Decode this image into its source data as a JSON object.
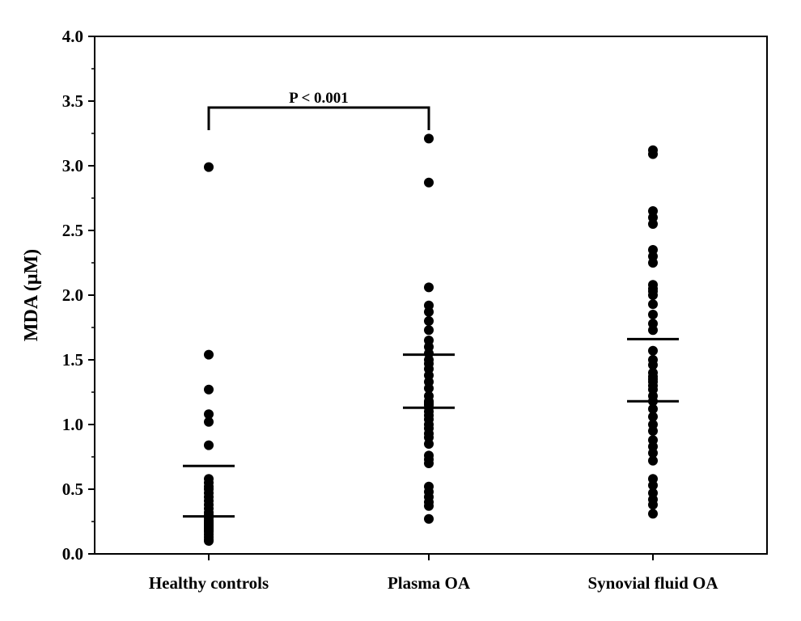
{
  "chart_data": {
    "type": "scatter",
    "title": "",
    "xlabel": "",
    "ylabel": "MDA (μM)",
    "ylim": [
      0,
      4
    ],
    "yticks": [
      "0.0",
      "0.5",
      "1.0",
      "1.5",
      "2.0",
      "2.5",
      "3.0",
      "3.5",
      "4.0"
    ],
    "grid": false,
    "categories": [
      "Healthy controls",
      "Plasma OA",
      "Synovial fluid OA"
    ],
    "series": [
      {
        "values": [
          2.99,
          1.54,
          1.27,
          1.08,
          1.02,
          0.84,
          0.58,
          0.55,
          0.52,
          0.5,
          0.47,
          0.44,
          0.41,
          0.38,
          0.35,
          0.32,
          0.3,
          0.28,
          0.26,
          0.25,
          0.24,
          0.23,
          0.22,
          0.22,
          0.21,
          0.2,
          0.2,
          0.19,
          0.18,
          0.17,
          0.15,
          0.13,
          0.11,
          0.1
        ],
        "summary_lines": [
          0.68,
          0.29
        ]
      },
      {
        "values": [
          3.21,
          2.87,
          2.06,
          1.92,
          1.87,
          1.8,
          1.73,
          1.65,
          1.6,
          1.55,
          1.5,
          1.47,
          1.43,
          1.38,
          1.33,
          1.28,
          1.22,
          1.18,
          1.17,
          1.16,
          1.15,
          1.13,
          1.1,
          1.07,
          1.04,
          1.0,
          0.97,
          0.93,
          0.9,
          0.85,
          0.76,
          0.73,
          0.7,
          0.52,
          0.48,
          0.44,
          0.4,
          0.37,
          0.27
        ],
        "summary_lines": [
          1.54,
          1.13
        ]
      },
      {
        "values": [
          3.12,
          3.09,
          2.65,
          2.6,
          2.55,
          2.35,
          2.3,
          2.25,
          2.08,
          2.05,
          2.03,
          2.0,
          1.93,
          1.85,
          1.78,
          1.73,
          1.57,
          1.5,
          1.46,
          1.4,
          1.37,
          1.35,
          1.33,
          1.3,
          1.27,
          1.22,
          1.18,
          1.12,
          1.06,
          1.0,
          0.95,
          0.88,
          0.83,
          0.78,
          0.72,
          0.58,
          0.53,
          0.47,
          0.42,
          0.38,
          0.31
        ],
        "summary_lines": [
          1.66,
          1.18
        ]
      }
    ],
    "annotations": [
      {
        "text": "P < 0.001",
        "between": [
          "Healthy controls",
          "Plasma OA"
        ],
        "y": 3.5
      }
    ],
    "colors": {
      "points": "#000000",
      "axes": "#000000"
    }
  }
}
